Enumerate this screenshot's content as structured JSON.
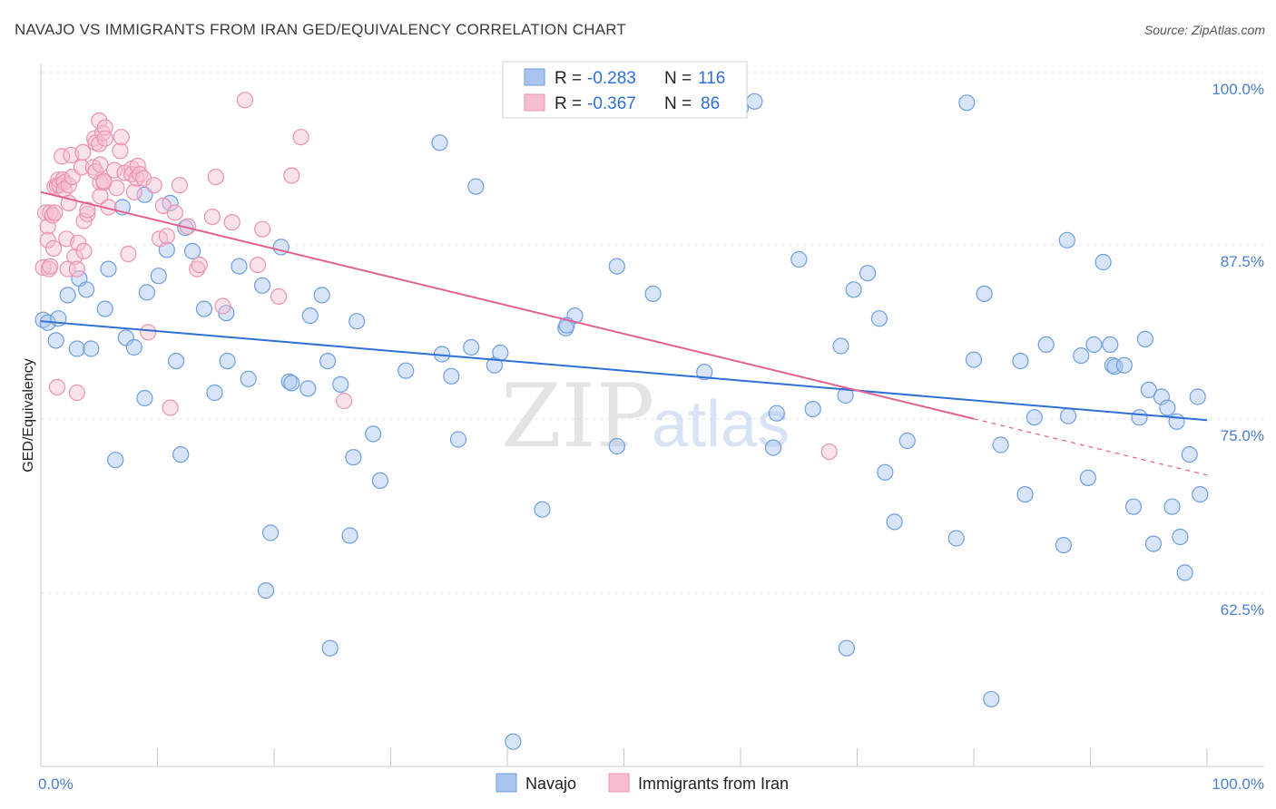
{
  "title": "NAVAJO VS IMMIGRANTS FROM IRAN GED/EQUIVALENCY CORRELATION CHART",
  "source": "Source: ZipAtlas.com",
  "watermark": {
    "part1": "ZIP",
    "part2": "atlas"
  },
  "legend_top": {
    "rows": [
      {
        "r_label": "R = ",
        "r_value": "-0.283",
        "n_label": "N = ",
        "n_value": "116"
      },
      {
        "r_label": "R = ",
        "r_value": "-0.367",
        "n_label": "N = ",
        "n_value": "86"
      }
    ]
  },
  "legend_bottom": {
    "items": [
      "Navajo",
      "Immigrants from Iran"
    ]
  },
  "colors": {
    "navajo_fill": "#a9c5ef",
    "navajo_stroke": "#6f9ee0",
    "navajo_line": "#2f6fd6",
    "iran_fill": "#f5bfd0",
    "iran_stroke": "#ea93b0",
    "iran_line": "#e35f8f",
    "grid": "#e3e3e3",
    "axis": "#c8c8c8"
  },
  "chart_data": {
    "type": "scatter",
    "title": "NAVAJO VS IMMIGRANTS FROM IRAN GED/EQUIVALENCY CORRELATION CHART",
    "xlabel": "",
    "ylabel": "GED/Equivalency",
    "xlim": [
      0,
      100
    ],
    "ylim": [
      51.5,
      102
    ],
    "x_tick_labels": [
      "0.0%",
      "100.0%"
    ],
    "y_ticks": [
      62.5,
      75.0,
      87.5,
      100.0
    ],
    "y_tick_labels": [
      "62.5%",
      "75.0%",
      "87.5%",
      "100.0%"
    ],
    "grid": true,
    "series": [
      {
        "name": "Navajo",
        "r": -0.283,
        "n": 116,
        "trend": {
          "x0": 0,
          "y0": 83.9,
          "x1": 100,
          "y1": 76.7
        },
        "points": [
          [
            0.2,
            84
          ],
          [
            0.6,
            83.8
          ],
          [
            1.3,
            82.5
          ],
          [
            1.5,
            84.1
          ],
          [
            2.3,
            85.8
          ],
          [
            3.1,
            81.9
          ],
          [
            3.3,
            87
          ],
          [
            3.9,
            86.2
          ],
          [
            4.3,
            81.9
          ],
          [
            5.5,
            84.8
          ],
          [
            5.8,
            87.7
          ],
          [
            6.4,
            73.8
          ],
          [
            7,
            92.2
          ],
          [
            7.3,
            82.7
          ],
          [
            8,
            82
          ],
          [
            8.9,
            93.1
          ],
          [
            8.9,
            78.3
          ],
          [
            9.1,
            86
          ],
          [
            10.1,
            87.2
          ],
          [
            10.8,
            89.1
          ],
          [
            11.1,
            92.5
          ],
          [
            11.6,
            81
          ],
          [
            12,
            74.2
          ],
          [
            12.4,
            90.7
          ],
          [
            13,
            89
          ],
          [
            14,
            84.8
          ],
          [
            14.9,
            78.7
          ],
          [
            15.9,
            84.5
          ],
          [
            16,
            81
          ],
          [
            17,
            87.9
          ],
          [
            17.8,
            79.7
          ],
          [
            19,
            86.5
          ],
          [
            19.3,
            64.3
          ],
          [
            19.7,
            68.5
          ],
          [
            20.6,
            89.3
          ],
          [
            21.3,
            79.5
          ],
          [
            21.5,
            79.4
          ],
          [
            22.9,
            79
          ],
          [
            23.1,
            84.3
          ],
          [
            24.1,
            85.8
          ],
          [
            24.6,
            81
          ],
          [
            24.8,
            60.1
          ],
          [
            25.7,
            79.3
          ],
          [
            26.5,
            68.3
          ],
          [
            26.8,
            74
          ],
          [
            27.1,
            83.9
          ],
          [
            28.5,
            75.7
          ],
          [
            29.1,
            72.3
          ],
          [
            31.3,
            80.3
          ],
          [
            34.2,
            96.9
          ],
          [
            34.4,
            81.5
          ],
          [
            35.2,
            79.9
          ],
          [
            35.8,
            75.3
          ],
          [
            36.9,
            82
          ],
          [
            37.3,
            93.7
          ],
          [
            38.9,
            80.7
          ],
          [
            39.4,
            81.6
          ],
          [
            40.5,
            53.3
          ],
          [
            43,
            70.2
          ],
          [
            45,
            83.4
          ],
          [
            45.8,
            84.3
          ],
          [
            45.1,
            83.6
          ],
          [
            49.4,
            74.8
          ],
          [
            49.4,
            87.9
          ],
          [
            52.5,
            85.9
          ],
          [
            56.9,
            80.2
          ],
          [
            60,
            99.4
          ],
          [
            61.2,
            99.9
          ],
          [
            62.8,
            74.7
          ],
          [
            63.1,
            77.2
          ],
          [
            65,
            88.4
          ],
          [
            66.2,
            77.5
          ],
          [
            68.6,
            82.1
          ],
          [
            69.1,
            60.1
          ],
          [
            69,
            78.5
          ],
          [
            69.7,
            86.2
          ],
          [
            70.9,
            87.4
          ],
          [
            71.9,
            84.1
          ],
          [
            72.4,
            72.9
          ],
          [
            73.2,
            69.3
          ],
          [
            74.3,
            75.2
          ],
          [
            78.5,
            68.1
          ],
          [
            79.4,
            99.8
          ],
          [
            80,
            81.1
          ],
          [
            80.9,
            85.9
          ],
          [
            81.5,
            56.4
          ],
          [
            82.3,
            74.9
          ],
          [
            84,
            81
          ],
          [
            84.4,
            71.3
          ],
          [
            85.2,
            76.9
          ],
          [
            86.2,
            82.2
          ],
          [
            87.7,
            67.6
          ],
          [
            88,
            89.8
          ],
          [
            88.1,
            77
          ],
          [
            89.2,
            81.4
          ],
          [
            89.8,
            72.5
          ],
          [
            90.3,
            82.2
          ],
          [
            91.1,
            88.2
          ],
          [
            91.7,
            82.2
          ],
          [
            91.9,
            80.7
          ],
          [
            92.1,
            80.6
          ],
          [
            92.9,
            80.7
          ],
          [
            93.7,
            70.4
          ],
          [
            94.2,
            76.9
          ],
          [
            94.7,
            82.6
          ],
          [
            95,
            78.9
          ],
          [
            95.4,
            67.7
          ],
          [
            96.1,
            78.4
          ],
          [
            96.6,
            77.6
          ],
          [
            97,
            70.4
          ],
          [
            97.4,
            76.6
          ],
          [
            97.7,
            68.2
          ],
          [
            98.1,
            65.6
          ],
          [
            98.5,
            74.2
          ],
          [
            99.2,
            78.4
          ],
          [
            99.4,
            71.3
          ]
        ]
      },
      {
        "name": "Immigrants from Iran",
        "r": -0.367,
        "n": 86,
        "trend": {
          "x0": 0,
          "y0": 93.3,
          "x1": 80,
          "y1": 76.8,
          "dash_to_x": 100,
          "dash_to_y": 72.7
        },
        "points": [
          [
            0.2,
            87.8
          ],
          [
            0.4,
            91.8
          ],
          [
            0.6,
            90.8
          ],
          [
            0.6,
            89.8
          ],
          [
            0.7,
            87.7
          ],
          [
            0.8,
            87.9
          ],
          [
            0.8,
            91.8
          ],
          [
            1,
            91.6
          ],
          [
            1.1,
            89.2
          ],
          [
            1.2,
            91.8
          ],
          [
            1.2,
            93.7
          ],
          [
            1.4,
            93.8
          ],
          [
            1.5,
            94.2
          ],
          [
            1.6,
            93.8
          ],
          [
            1.8,
            95.9
          ],
          [
            1.9,
            94.2
          ],
          [
            2,
            94
          ],
          [
            2,
            93.5
          ],
          [
            1.4,
            79.1
          ],
          [
            2.2,
            89.9
          ],
          [
            2.3,
            87.7
          ],
          [
            2.4,
            93.8
          ],
          [
            2.4,
            92.5
          ],
          [
            2.6,
            96
          ],
          [
            2.7,
            94.4
          ],
          [
            2.9,
            88.6
          ],
          [
            3.1,
            87.7
          ],
          [
            3.1,
            78.7
          ],
          [
            3.2,
            89.6
          ],
          [
            3.5,
            95.1
          ],
          [
            3.6,
            96.2
          ],
          [
            3.7,
            89
          ],
          [
            3.7,
            91.2
          ],
          [
            4,
            91.7
          ],
          [
            4,
            92
          ],
          [
            4.5,
            95.1
          ],
          [
            4.6,
            97.2
          ],
          [
            4.7,
            94.8
          ],
          [
            4.7,
            96.9
          ],
          [
            5,
            98.5
          ],
          [
            5,
            96.8
          ],
          [
            5.1,
            95.3
          ],
          [
            5.1,
            94
          ],
          [
            5.1,
            93
          ],
          [
            5.3,
            97.6
          ],
          [
            5.4,
            94
          ],
          [
            5.4,
            94.1
          ],
          [
            5.5,
            98
          ],
          [
            5.5,
            97.2
          ],
          [
            5.8,
            92.2
          ],
          [
            6.3,
            94.9
          ],
          [
            6.5,
            93.6
          ],
          [
            6.8,
            96.3
          ],
          [
            6.9,
            97.3
          ],
          [
            7.2,
            94.7
          ],
          [
            7.5,
            88.8
          ],
          [
            7.8,
            95
          ],
          [
            7.8,
            94.6
          ],
          [
            8,
            93.3
          ],
          [
            8.2,
            94.3
          ],
          [
            8.3,
            95.2
          ],
          [
            8.5,
            94.6
          ],
          [
            8.8,
            94.3
          ],
          [
            9.2,
            83.1
          ],
          [
            9.7,
            93.8
          ],
          [
            10.2,
            89.9
          ],
          [
            10.5,
            92.3
          ],
          [
            10.8,
            90.1
          ],
          [
            11.1,
            77.6
          ],
          [
            11.5,
            91.8
          ],
          [
            11.9,
            93.8
          ],
          [
            12.6,
            90.8
          ],
          [
            13.4,
            87.7
          ],
          [
            13.6,
            88
          ],
          [
            14.7,
            91.5
          ],
          [
            15,
            94.4
          ],
          [
            15.6,
            85
          ],
          [
            16.4,
            91.1
          ],
          [
            17.5,
            100
          ],
          [
            18.6,
            88
          ],
          [
            19,
            90.6
          ],
          [
            20.4,
            85.7
          ],
          [
            21.5,
            94.5
          ],
          [
            22.3,
            97.3
          ],
          [
            26,
            78.1
          ],
          [
            67.6,
            74.4
          ]
        ]
      }
    ]
  }
}
